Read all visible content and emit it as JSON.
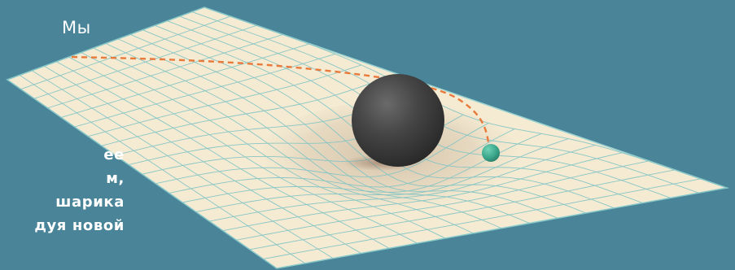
{
  "labels": {
    "we": "Мы"
  },
  "side_text": [
    "ее",
    "м,",
    "шарика",
    "дуя новой"
  ],
  "colors": {
    "background": "#4a8499",
    "sheet": "#f4ebd2",
    "grid_line": "#7fc3c4",
    "sheet_edge": "#9ad3d2",
    "trajectory": "#e97a3b",
    "big_ball": "#3d3d3d",
    "small_ball": "#3aa58a",
    "label_text": "#ffffff"
  }
}
